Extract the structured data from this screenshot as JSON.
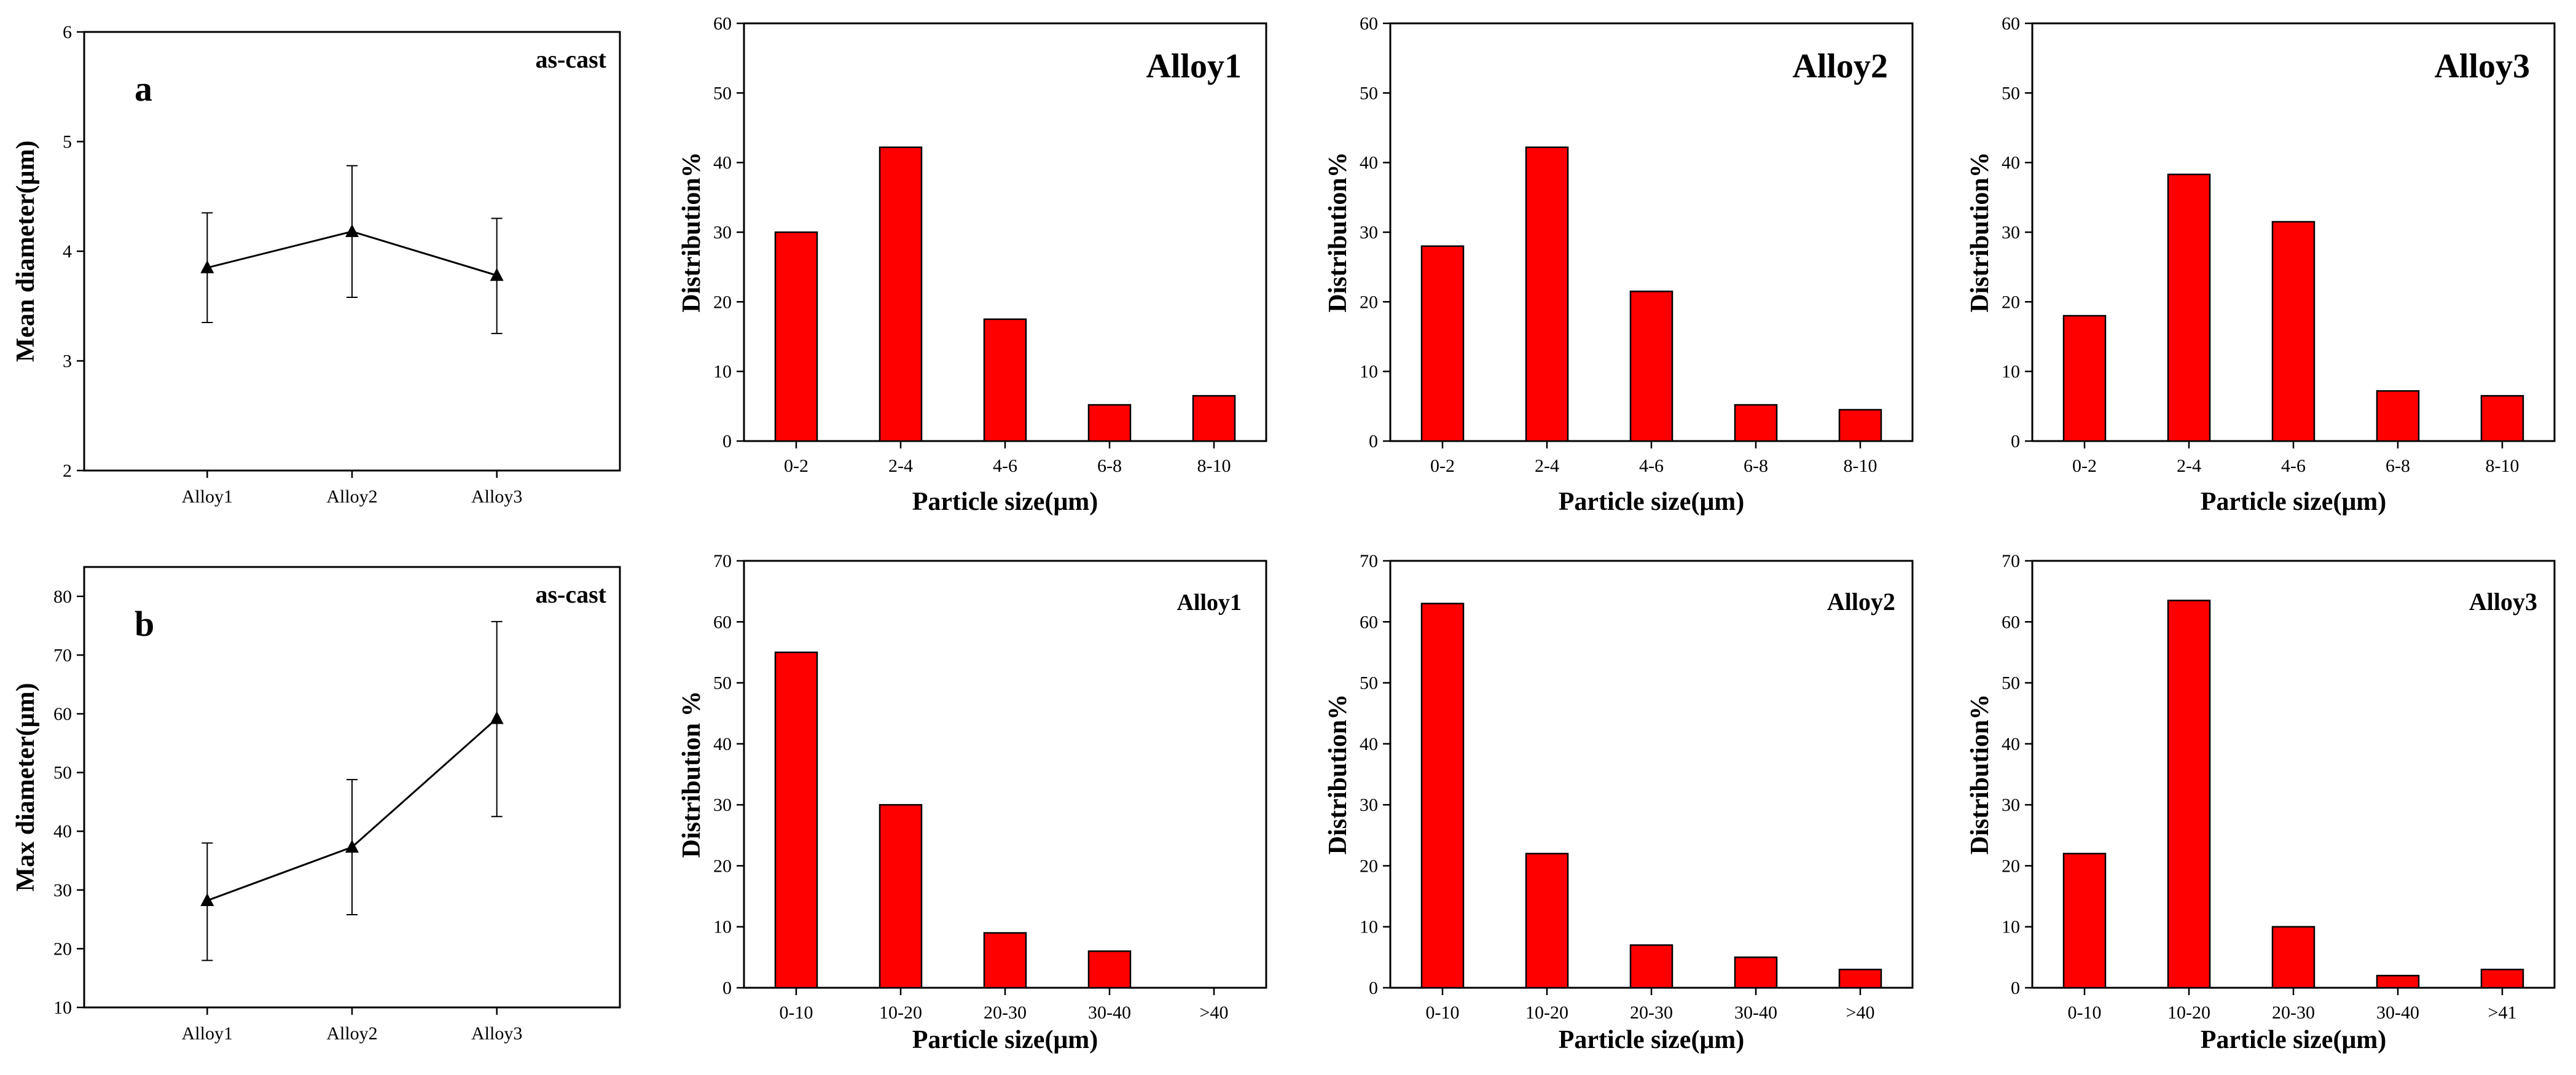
{
  "colors": {
    "bar": "#ff0000",
    "bar_edge": "#000000",
    "line": "#000000"
  },
  "chart_data": [
    {
      "id": "mean",
      "type": "line",
      "panel_letter": "a",
      "annotation": "as-cast",
      "title": "",
      "xlabel": "",
      "ylabel": "Mean diameter(μm)",
      "categories": [
        "Alloy1",
        "Alloy2",
        "Alloy3"
      ],
      "values": [
        3.85,
        4.18,
        3.78
      ],
      "error_low": [
        3.35,
        3.58,
        3.25
      ],
      "error_high": [
        4.35,
        4.78,
        4.3
      ],
      "ylim": [
        2,
        6
      ],
      "yticks": [
        "2",
        "3",
        "4",
        "5",
        "6"
      ],
      "marker": "triangle"
    },
    {
      "id": "mean-alloy1",
      "type": "bar",
      "title": "Alloy1",
      "xlabel": "Particle size(μm)",
      "ylabel": "Distribution%",
      "categories": [
        "0-2",
        "2-4",
        "4-6",
        "6-8",
        "8-10"
      ],
      "values": [
        30,
        42.2,
        17.5,
        5.2,
        6.5
      ],
      "ylim": [
        0,
        60
      ],
      "yticks": [
        "0",
        "10",
        "20",
        "30",
        "40",
        "50",
        "60"
      ]
    },
    {
      "id": "mean-alloy2",
      "type": "bar",
      "title": "Alloy2",
      "xlabel": "Particle size(μm)",
      "ylabel": "Distribution%",
      "categories": [
        "0-2",
        "2-4",
        "4-6",
        "6-8",
        "8-10"
      ],
      "values": [
        28,
        42.2,
        21.5,
        5.2,
        4.5
      ],
      "ylim": [
        0,
        60
      ],
      "yticks": [
        "0",
        "10",
        "20",
        "30",
        "40",
        "50",
        "60"
      ]
    },
    {
      "id": "mean-alloy3",
      "type": "bar",
      "title": "Alloy3",
      "xlabel": "Particle size(μm)",
      "ylabel": "Distribution%",
      "categories": [
        "0-2",
        "2-4",
        "4-6",
        "6-8",
        "8-10"
      ],
      "values": [
        18,
        38.3,
        31.5,
        7.2,
        6.5
      ],
      "ylim": [
        0,
        60
      ],
      "yticks": [
        "0",
        "10",
        "20",
        "30",
        "40",
        "50",
        "60"
      ]
    },
    {
      "id": "max",
      "type": "line",
      "panel_letter": "b",
      "annotation": "as-cast",
      "title": "",
      "xlabel": "",
      "ylabel": "Max diameter(μm)",
      "categories": [
        "Alloy1",
        "Alloy2",
        "Alloy3"
      ],
      "values": [
        28.2,
        37.3,
        59.2
      ],
      "error_low": [
        18,
        25.8,
        42.5
      ],
      "error_high": [
        38,
        48.8,
        75.7
      ],
      "ylim": [
        10,
        85
      ],
      "yticks": [
        "10",
        "20",
        "30",
        "40",
        "50",
        "60",
        "70",
        "80"
      ],
      "marker": "triangle"
    },
    {
      "id": "max-alloy1",
      "type": "bar",
      "title": "Alloy1",
      "xlabel": "Particle size(μm)",
      "ylabel": "Distribution %",
      "categories": [
        "0-10",
        "10-20",
        "20-30",
        "30-40",
        ">40"
      ],
      "values": [
        55,
        30,
        9,
        6,
        0
      ],
      "ylim": [
        0,
        70
      ],
      "yticks": [
        "0",
        "10",
        "20",
        "30",
        "40",
        "50",
        "60",
        "70"
      ]
    },
    {
      "id": "max-alloy2",
      "type": "bar",
      "title": "Alloy2",
      "xlabel": "Particle size(μm)",
      "ylabel": "Distribution%",
      "categories": [
        "0-10",
        "10-20",
        "20-30",
        "30-40",
        ">40"
      ],
      "values": [
        63,
        22,
        7,
        5,
        3
      ],
      "ylim": [
        0,
        70
      ],
      "yticks": [
        "0",
        "10",
        "20",
        "30",
        "40",
        "50",
        "60",
        "70"
      ]
    },
    {
      "id": "max-alloy3",
      "type": "bar",
      "title": "Alloy3",
      "xlabel": "Particle size(μm)",
      "ylabel": "Distribution%",
      "categories": [
        "0-10",
        "10-20",
        "20-30",
        "30-40",
        ">41"
      ],
      "values": [
        22,
        63.5,
        10,
        2,
        3
      ],
      "ylim": [
        0,
        70
      ],
      "yticks": [
        "0",
        "10",
        "20",
        "30",
        "40",
        "50",
        "60",
        "70"
      ]
    }
  ]
}
